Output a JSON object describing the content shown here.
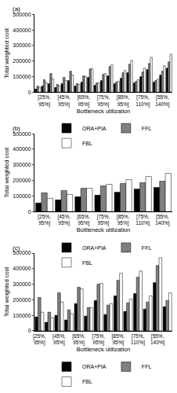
{
  "chart_data": [
    {
      "type": "bar",
      "title": "(a)",
      "x_label": "Bottleneck utilization",
      "y_label": "Total weighted cost",
      "categories": [
        null,
        "[25%, 95%]",
        null,
        null,
        "[45%, 95%]",
        null,
        null,
        "[65%, 95%]",
        null,
        null,
        "[75%, 95%]",
        null,
        null,
        "[85%, 95%]",
        null,
        null,
        "[75%, 110%]",
        null,
        null,
        "[55%, 140%]",
        null
      ],
      "series": [
        {
          "name": "ORA+PIA",
          "color": "#000000",
          "values": [
            20000,
            40000,
            55000,
            30000,
            55000,
            75000,
            40000,
            65000,
            95000,
            45000,
            75000,
            105000,
            55000,
            90000,
            125000,
            60000,
            100000,
            145000,
            65000,
            110000,
            155000
          ]
        },
        {
          "name": "FFL",
          "color": "#808080",
          "values": [
            40000,
            80000,
            120000,
            50000,
            95000,
            135000,
            55000,
            105000,
            150000,
            60000,
            115000,
            165000,
            65000,
            125000,
            180000,
            70000,
            130000,
            185000,
            75000,
            135000,
            195000
          ]
        },
        {
          "name": "FBL",
          "color": "#ffffff",
          "values": [
            30000,
            60000,
            85000,
            40000,
            75000,
            110000,
            50000,
            100000,
            150000,
            60000,
            120000,
            175000,
            70000,
            140000,
            205000,
            80000,
            155000,
            225000,
            85000,
            170000,
            245000
          ]
        }
      ],
      "ylim": [
        0,
        500000
      ],
      "yticks": [
        0,
        100000,
        200000,
        300000,
        400000,
        500000
      ],
      "grid": false,
      "legend": "bottom"
    },
    {
      "type": "bar",
      "title": "(b)",
      "x_label": "Bottleneck utilization",
      "y_label": "Total weighted cost",
      "categories": [
        "[25%, 95%]",
        "[45%, 95%]",
        "[65%, 95%]",
        "[75%, 95%]",
        "[85%, 95%]",
        "[75%, 110%]",
        "[55%, 140%]"
      ],
      "series": [
        {
          "name": "ORA+PIA",
          "color": "#000000",
          "values": [
            55000,
            75000,
            95000,
            105000,
            125000,
            145000,
            155000
          ]
        },
        {
          "name": "FFL",
          "color": "#808080",
          "values": [
            120000,
            135000,
            150000,
            165000,
            180000,
            185000,
            195000
          ]
        },
        {
          "name": "FBL",
          "color": "#ffffff",
          "values": [
            85000,
            110000,
            150000,
            175000,
            205000,
            225000,
            245000
          ]
        }
      ],
      "ylim": [
        0,
        500000
      ],
      "yticks": [
        0,
        100000,
        200000,
        300000,
        400000,
        500000
      ],
      "grid": false,
      "legend": "bottom"
    },
    {
      "type": "bar",
      "title": "(c)",
      "x_label": "Bottleneck utilization",
      "y_label": "Total weighted cost",
      "categories": [
        "[25%, 95%]",
        null,
        "[45%, 95%]",
        null,
        "[65%, 95%]",
        null,
        "[75%, 95%]",
        null,
        "[85%, 95%]",
        null,
        "[75%, 110%]",
        null,
        "[55%, 140%]",
        null
      ],
      "series": [
        {
          "name": "ORA+PIA",
          "color": "#000000",
          "values": [
            90000,
            55000,
            100000,
            70000,
            175000,
            95000,
            195000,
            105000,
            225000,
            125000,
            240000,
            140000,
            310000,
            155000
          ]
        },
        {
          "name": "FFL",
          "color": "#808080",
          "values": [
            215000,
            120000,
            245000,
            135000,
            280000,
            150000,
            300000,
            165000,
            325000,
            180000,
            345000,
            185000,
            420000,
            195000
          ]
        },
        {
          "name": "FBL",
          "color": "#ffffff",
          "values": [
            120000,
            85000,
            185000,
            110000,
            270000,
            150000,
            305000,
            175000,
            370000,
            205000,
            385000,
            225000,
            470000,
            245000
          ]
        }
      ],
      "ylim": [
        0,
        500000
      ],
      "yticks": [
        0,
        100000,
        200000,
        300000,
        400000,
        500000
      ],
      "grid": false,
      "legend": "bottom"
    }
  ]
}
